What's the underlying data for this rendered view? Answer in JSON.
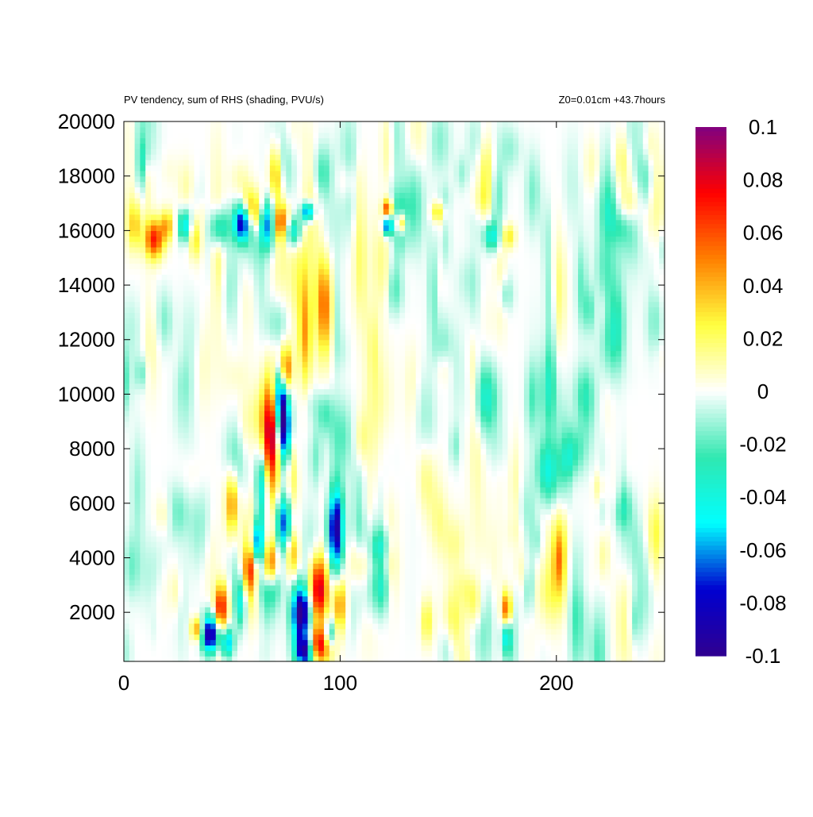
{
  "chart_data": {
    "type": "heatmap",
    "title": "PV tendency, sum of RHS (shading, PVU/s)",
    "subtitle": "Z0=0.01cm   +43.7hours",
    "xlabel": "",
    "ylabel": "",
    "xlim": [
      0,
      250
    ],
    "ylim": [
      200,
      20000
    ],
    "xticks": [
      "0",
      "100",
      "200"
    ],
    "xtick_values": [
      0,
      100,
      200
    ],
    "yticks": [
      "2000",
      "4000",
      "6000",
      "8000",
      "10000",
      "12000",
      "14000",
      "16000",
      "18000",
      "20000"
    ],
    "ytick_values": [
      2000,
      4000,
      6000,
      8000,
      10000,
      12000,
      14000,
      16000,
      18000,
      20000
    ],
    "colorbar": {
      "range": [
        -0.1,
        0.1
      ],
      "ticks": [
        "0.1",
        "0.08",
        "0.06",
        "0.04",
        "0.02",
        "0",
        "-0.02",
        "-0.04",
        "-0.06",
        "-0.08",
        "-0.1"
      ],
      "tick_values": [
        0.1,
        0.08,
        0.06,
        0.04,
        0.02,
        0,
        -0.02,
        -0.04,
        -0.06,
        -0.08,
        -0.1
      ],
      "colors": [
        "#800080",
        "#ff0000",
        "#ff8000",
        "#ffff40",
        "#ffffff",
        "#30e8b0",
        "#00ffff",
        "#0000d0",
        "#300090"
      ]
    },
    "grid": false,
    "features": [
      {
        "x": 14,
        "y": 15700,
        "sx": 3,
        "sy": 500,
        "value": 0.07
      },
      {
        "x": 20,
        "y": 16200,
        "sx": 2,
        "sy": 400,
        "value": 0.04
      },
      {
        "x": 28,
        "y": 16200,
        "sx": 2,
        "sy": 400,
        "value": -0.05
      },
      {
        "x": 33,
        "y": 15700,
        "sx": 2,
        "sy": 500,
        "value": 0.03
      },
      {
        "x": 44,
        "y": 16100,
        "sx": 3,
        "sy": 500,
        "value": -0.045
      },
      {
        "x": 55,
        "y": 16300,
        "sx": 3,
        "sy": 500,
        "value": -0.1
      },
      {
        "x": 60,
        "y": 16500,
        "sx": 4,
        "sy": 600,
        "value": 0.1
      },
      {
        "x": 66,
        "y": 16300,
        "sx": 4,
        "sy": 600,
        "value": -0.1
      },
      {
        "x": 72,
        "y": 16300,
        "sx": 3,
        "sy": 500,
        "value": 0.09
      },
      {
        "x": 70,
        "y": 18200,
        "sx": 2,
        "sy": 700,
        "value": 0.04
      },
      {
        "x": 78,
        "y": 16000,
        "sx": 3,
        "sy": 400,
        "value": -0.05
      },
      {
        "x": 85,
        "y": 16700,
        "sx": 2,
        "sy": 250,
        "value": -0.08
      },
      {
        "x": 122,
        "y": 16800,
        "sx": 1.5,
        "sy": 250,
        "value": 0.07
      },
      {
        "x": 122,
        "y": 16200,
        "sx": 1.5,
        "sy": 250,
        "value": -0.08
      },
      {
        "x": 128,
        "y": 16300,
        "sx": 1.5,
        "sy": 250,
        "value": 0.05
      },
      {
        "x": 145,
        "y": 16700,
        "sx": 2,
        "sy": 250,
        "value": 0.03
      },
      {
        "x": 170,
        "y": 15800,
        "sx": 2.5,
        "sy": 350,
        "value": -0.04
      },
      {
        "x": 178,
        "y": 15800,
        "sx": 2,
        "sy": 300,
        "value": 0.03
      },
      {
        "x": 68,
        "y": 8500,
        "sx": 3,
        "sy": 1400,
        "value": 0.1
      },
      {
        "x": 74,
        "y": 8800,
        "sx": 2.5,
        "sy": 900,
        "value": -0.1
      },
      {
        "x": 64,
        "y": 6700,
        "sx": 2,
        "sy": 1000,
        "value": -0.06
      },
      {
        "x": 74,
        "y": 5300,
        "sx": 2.5,
        "sy": 700,
        "value": -0.07
      },
      {
        "x": 72,
        "y": 10000,
        "sx": 2,
        "sy": 700,
        "value": -0.07
      },
      {
        "x": 75,
        "y": 10900,
        "sx": 2,
        "sy": 600,
        "value": 0.06
      },
      {
        "x": 84,
        "y": 12300,
        "sx": 2,
        "sy": 1500,
        "value": 0.04
      },
      {
        "x": 92,
        "y": 13300,
        "sx": 2.5,
        "sy": 1300,
        "value": 0.05
      },
      {
        "x": 78,
        "y": 7500,
        "sx": 2,
        "sy": 1200,
        "value": 0.04
      },
      {
        "x": 62,
        "y": 4600,
        "sx": 2,
        "sy": 600,
        "value": -0.08
      },
      {
        "x": 58,
        "y": 3500,
        "sx": 2,
        "sy": 600,
        "value": 0.05
      },
      {
        "x": 54,
        "y": 2400,
        "sx": 2,
        "sy": 700,
        "value": -0.05
      },
      {
        "x": 50,
        "y": 6000,
        "sx": 2,
        "sy": 800,
        "value": 0.05
      },
      {
        "x": 82,
        "y": 2000,
        "sx": 3,
        "sy": 700,
        "value": -0.1
      },
      {
        "x": 90,
        "y": 2800,
        "sx": 3,
        "sy": 900,
        "value": 0.1
      },
      {
        "x": 90,
        "y": 800,
        "sx": 4,
        "sy": 500,
        "value": 0.1
      },
      {
        "x": 84,
        "y": 600,
        "sx": 3,
        "sy": 400,
        "value": -0.1
      },
      {
        "x": 98,
        "y": 5100,
        "sx": 2.5,
        "sy": 1100,
        "value": -0.1
      },
      {
        "x": 100,
        "y": 2300,
        "sx": 2,
        "sy": 700,
        "value": 0.05
      },
      {
        "x": 95,
        "y": 1200,
        "sx": 2,
        "sy": 400,
        "value": -0.05
      },
      {
        "x": 68,
        "y": 3800,
        "sx": 2,
        "sy": 600,
        "value": 0.06
      },
      {
        "x": 78,
        "y": 4200,
        "sx": 2,
        "sy": 600,
        "value": 0.04
      },
      {
        "x": 40,
        "y": 1200,
        "sx": 3,
        "sy": 500,
        "value": -0.1
      },
      {
        "x": 45,
        "y": 2200,
        "sx": 2,
        "sy": 600,
        "value": 0.08
      },
      {
        "x": 34,
        "y": 1400,
        "sx": 2,
        "sy": 300,
        "value": 0.05
      },
      {
        "x": 48,
        "y": 900,
        "sx": 2,
        "sy": 400,
        "value": -0.06
      },
      {
        "x": 177,
        "y": 2000,
        "sx": 1.5,
        "sy": 500,
        "value": 0.08
      },
      {
        "x": 177,
        "y": 1300,
        "sx": 1.5,
        "sy": 500,
        "value": -0.06
      },
      {
        "x": 202,
        "y": 4000,
        "sx": 2.5,
        "sy": 1200,
        "value": 0.035
      },
      {
        "x": 162,
        "y": 2300,
        "sx": 3,
        "sy": 600,
        "value": 0.025
      },
      {
        "x": 140,
        "y": 1700,
        "sx": 2,
        "sy": 600,
        "value": 0.03
      },
      {
        "x": 120,
        "y": 3000,
        "sx": 2,
        "sy": 700,
        "value": -0.02
      },
      {
        "x": 5,
        "y": 16200,
        "sx": 2,
        "sy": 600,
        "value": 0.03
      },
      {
        "x": 230,
        "y": 18500,
        "sx": 3,
        "sy": 700,
        "value": 0.02
      },
      {
        "x": 140,
        "y": 7000,
        "sx": 3,
        "sy": 1000,
        "value": 0.02
      },
      {
        "x": 195,
        "y": 7200,
        "sx": 3,
        "sy": 900,
        "value": -0.02
      }
    ]
  }
}
